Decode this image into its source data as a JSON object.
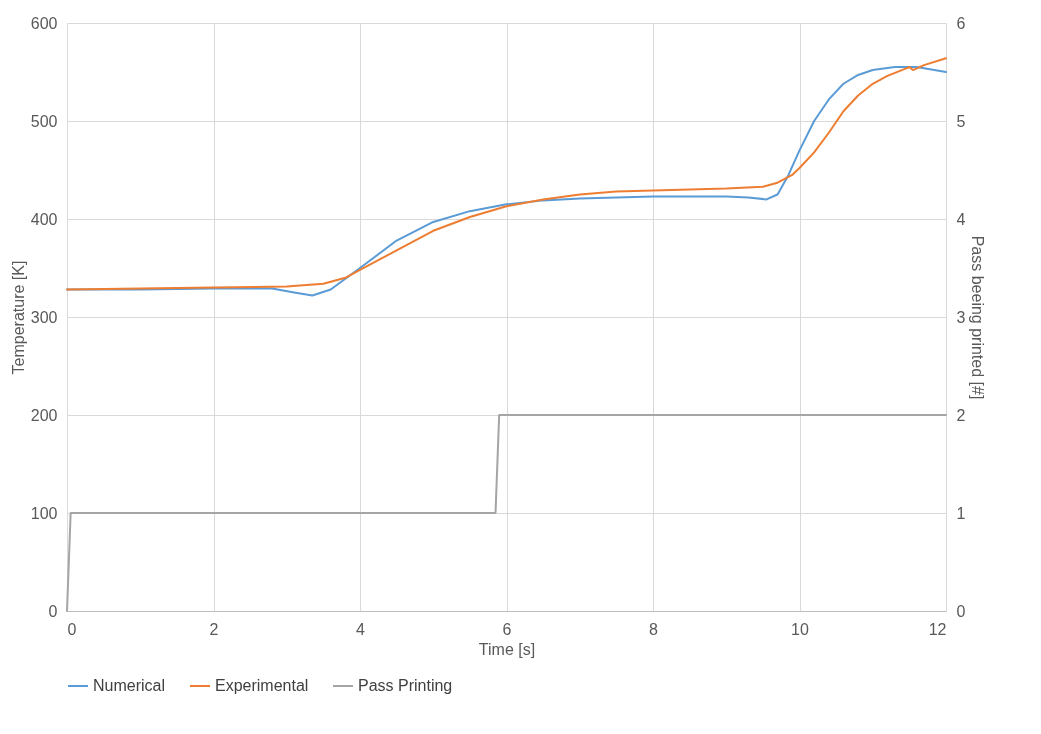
{
  "chart_data": {
    "type": "line",
    "xlabel": "Time [s]",
    "ylabel": "Temperature [K]",
    "y2label": "Pass beeing printed [#]",
    "xlim": [
      0,
      12
    ],
    "xticks": [
      0,
      2,
      4,
      6,
      8,
      10,
      12
    ],
    "ylim": [
      0,
      600
    ],
    "yticks": [
      0,
      100,
      200,
      300,
      400,
      500,
      600
    ],
    "y2lim": [
      0,
      6
    ],
    "y2ticks": [
      0,
      1,
      2,
      3,
      4,
      5,
      6
    ],
    "grid": true,
    "legend": "bottom",
    "series": [
      {
        "name": "Numerical",
        "color": "#5b9bd5",
        "x": [
          0,
          1,
          2,
          2.8,
          3.1,
          3.35,
          3.6,
          4,
          4.5,
          5,
          5.5,
          6,
          6.5,
          7,
          8,
          9,
          9.3,
          9.55,
          9.7,
          9.85,
          10,
          10.2,
          10.4,
          10.6,
          10.8,
          11,
          11.3,
          11.6,
          12
        ],
        "values": [
          328,
          328,
          329,
          329,
          325,
          322,
          328,
          350,
          378,
          397,
          408,
          415,
          419,
          421,
          423,
          423,
          422,
          420,
          425,
          445,
          470,
          500,
          522,
          538,
          547,
          552,
          555,
          555,
          550
        ]
      },
      {
        "name": "Experimental",
        "color": "#ed7d31",
        "x": [
          0,
          1,
          2,
          3,
          3.5,
          3.8,
          4,
          4.5,
          5,
          5.5,
          6,
          6.5,
          7,
          7.5,
          8,
          9,
          9.5,
          9.7,
          9.9,
          10,
          10.2,
          10.4,
          10.6,
          10.8,
          11,
          11.2,
          11.5,
          11.55,
          11.7,
          12
        ],
        "values": [
          328,
          329,
          330,
          331,
          334,
          340,
          348,
          368,
          388,
          402,
          413,
          420,
          425,
          428,
          429,
          431,
          433,
          437,
          445,
          452,
          468,
          488,
          510,
          526,
          538,
          546,
          555,
          552,
          557,
          564
        ]
      },
      {
        "name": "Pass Printing",
        "color": "#a5a5a5",
        "axis": "y2",
        "x": [
          0,
          0.05,
          5.85,
          5.9,
          12
        ],
        "values": [
          0,
          1,
          1,
          2,
          2
        ]
      }
    ]
  }
}
